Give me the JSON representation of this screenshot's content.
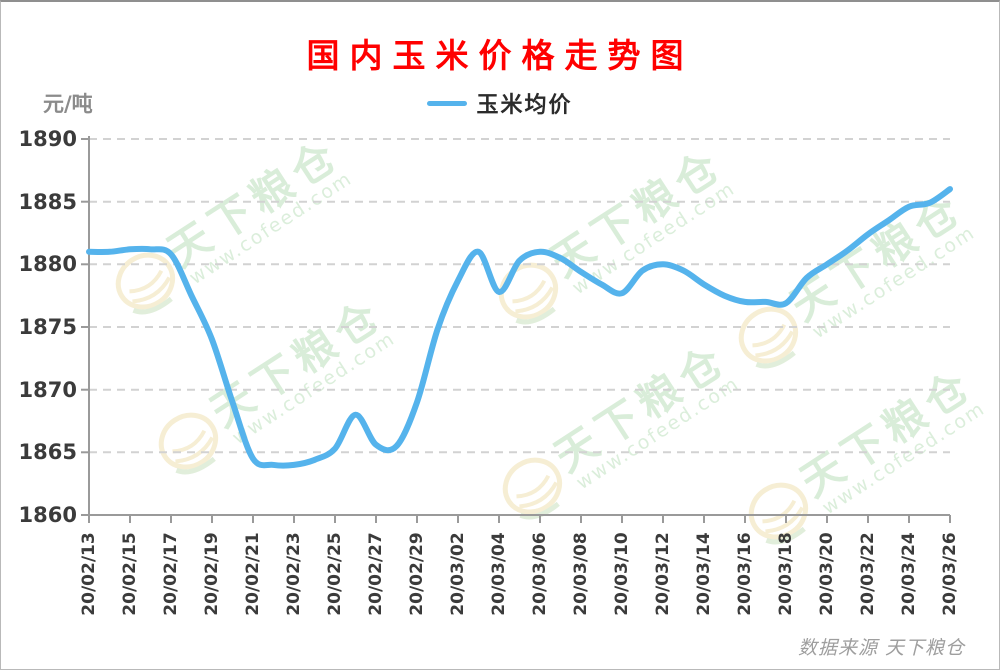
{
  "page": {
    "title": "国内玉米价格走势图",
    "y_axis_unit": "元/吨",
    "legend_label": "玉米均价",
    "source_note": "数据来源 天下粮仓",
    "watermark": {
      "text": "天下粮仓",
      "url": "www.cofeed.com"
    },
    "colors": {
      "title": "#ff0000",
      "line": "#55b3ec",
      "grid": "#d2d2d2",
      "axis": "#9a9a9a",
      "tick_label": "#3b3b3b",
      "unit_label": "#8b8b8b",
      "source_text": "#9e9e9e"
    }
  },
  "chart_data": {
    "type": "line",
    "title": "国内玉米价格走势图",
    "ylabel": "元/吨",
    "legend_entries": [
      "玉米均价"
    ],
    "legend_position": "top",
    "grid": "horizontal-dashed",
    "ylim": [
      1860,
      1890
    ],
    "y_ticks": [
      1860,
      1865,
      1870,
      1875,
      1880,
      1885,
      1890
    ],
    "x_tick_labels": [
      "20/02/13",
      "20/02/15",
      "20/02/17",
      "20/02/19",
      "20/02/21",
      "20/02/23",
      "20/02/25",
      "20/02/27",
      "20/02/29",
      "20/03/02",
      "20/03/04",
      "20/03/06",
      "20/03/08",
      "20/03/10",
      "20/03/12",
      "20/03/14",
      "20/03/16",
      "20/03/18",
      "20/03/20",
      "20/03/22",
      "20/03/24",
      "20/03/26"
    ],
    "series": [
      {
        "name": "玉米均价",
        "x": [
          "20/02/13",
          "20/02/14",
          "20/02/15",
          "20/02/16",
          "20/02/17",
          "20/02/18",
          "20/02/19",
          "20/02/20",
          "20/02/21",
          "20/02/22",
          "20/02/23",
          "20/02/24",
          "20/02/25",
          "20/02/26",
          "20/02/27",
          "20/02/28",
          "20/02/29",
          "20/03/01",
          "20/03/02",
          "20/03/03",
          "20/03/04",
          "20/03/05",
          "20/03/06",
          "20/03/07",
          "20/03/08",
          "20/03/09",
          "20/03/10",
          "20/03/11",
          "20/03/12",
          "20/03/13",
          "20/03/14",
          "20/03/15",
          "20/03/16",
          "20/03/17",
          "20/03/18",
          "20/03/19",
          "20/03/20",
          "20/03/21",
          "20/03/22",
          "20/03/23",
          "20/03/24",
          "20/03/25",
          "20/03/26"
        ],
        "values": [
          1881,
          1881,
          1881.2,
          1881.2,
          1880.8,
          1877.5,
          1874,
          1869,
          1864.5,
          1864,
          1864,
          1864.4,
          1865.3,
          1868,
          1865.6,
          1865.5,
          1869,
          1874.8,
          1878.7,
          1881,
          1877.8,
          1880.3,
          1881,
          1880.5,
          1879.4,
          1878.4,
          1877.7,
          1879.5,
          1880,
          1879.5,
          1878.4,
          1877.5,
          1877,
          1877,
          1876.9,
          1878.9,
          1880,
          1881.1,
          1882.4,
          1883.5,
          1884.6,
          1884.9,
          1886
        ]
      }
    ]
  }
}
